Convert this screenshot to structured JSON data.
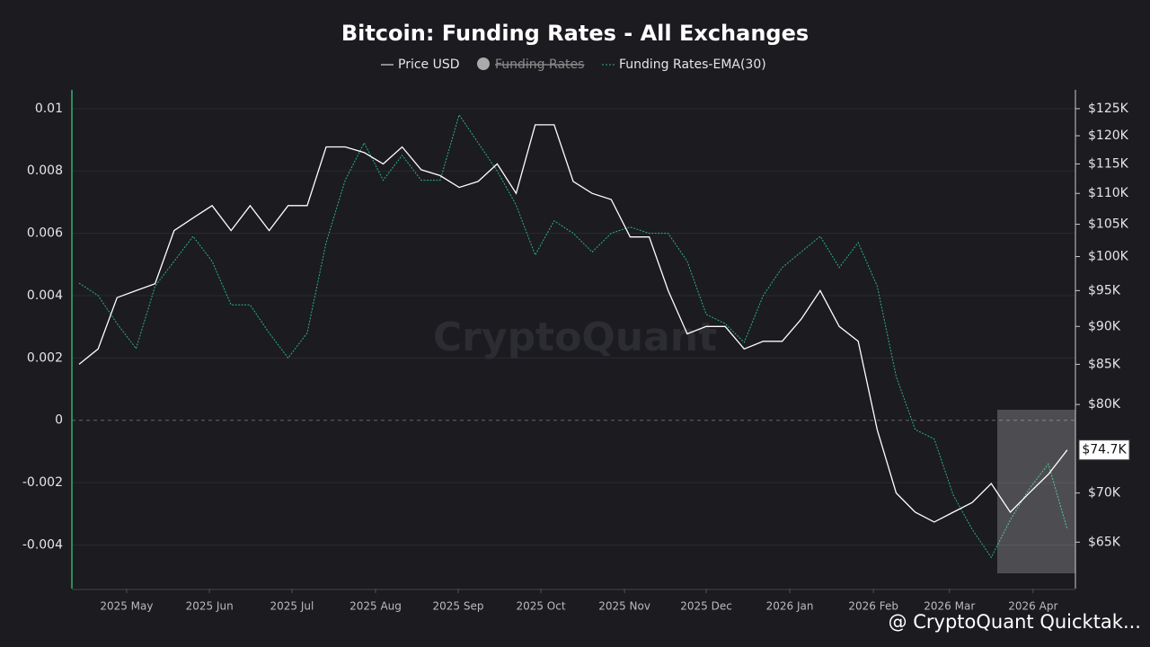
{
  "chart_data": {
    "type": "line",
    "title": "Bitcoin: Funding Rates - All Exchanges",
    "watermark": "CryptoQuant",
    "footer": "@ CryptoQuant Quicktak...",
    "legend_hidden": "Funding Rates",
    "xlim": [
      -0.38,
      52.43
    ],
    "xticks": [
      {
        "value": 2.5,
        "label": "2025 May"
      },
      {
        "value": 6.86,
        "label": "2025 Jun"
      },
      {
        "value": 11.2,
        "label": "2025 Jul"
      },
      {
        "value": 15.6,
        "label": "2025 Aug"
      },
      {
        "value": 19.95,
        "label": "2025 Sep"
      },
      {
        "value": 24.3,
        "label": "2025 Oct"
      },
      {
        "value": 28.7,
        "label": "2025 Nov"
      },
      {
        "value": 33.0,
        "label": "2025 Dec"
      },
      {
        "value": 37.4,
        "label": "2026 Jan"
      },
      {
        "value": 41.8,
        "label": "2026 Feb"
      },
      {
        "value": 45.8,
        "label": "2026 Mar"
      },
      {
        "value": 50.2,
        "label": "2026 Apr"
      }
    ],
    "ylim": [
      -0.0054,
      0.0106
    ],
    "yticks": [
      -0.004,
      -0.002,
      0,
      0.002,
      0.004,
      0.006,
      0.008,
      0.01
    ],
    "y2lim": [
      60600,
      128600
    ],
    "y2scale": "log",
    "y2ticks": [
      {
        "value": 65000,
        "label": "$65K"
      },
      {
        "value": 70000,
        "label": "$70K"
      },
      {
        "value": 80000,
        "label": "$80K"
      },
      {
        "value": 85000,
        "label": "$85K"
      },
      {
        "value": 90000,
        "label": "$90K"
      },
      {
        "value": 95000,
        "label": "$95K"
      },
      {
        "value": 100000,
        "label": "$100K"
      },
      {
        "value": 105000,
        "label": "$105K"
      },
      {
        "value": 110000,
        "label": "$110K"
      },
      {
        "value": 115000,
        "label": "$115K"
      },
      {
        "value": 120000,
        "label": "$120K"
      },
      {
        "value": 125000,
        "label": "$125K"
      }
    ],
    "grid": true,
    "series": [
      {
        "name": "Price USD",
        "color": "#ffffff",
        "axis": "y2",
        "values": [
          85000,
          87000,
          94000,
          95000,
          96000,
          104000,
          106000,
          108000,
          104000,
          108000,
          104000,
          108000,
          108000,
          118000,
          118000,
          117000,
          115000,
          118000,
          114000,
          113000,
          111000,
          112000,
          115000,
          110000,
          122000,
          122000,
          112000,
          110000,
          109000,
          103000,
          103000,
          95000,
          89000,
          90000,
          90000,
          87000,
          88000,
          88000,
          91000,
          95000,
          90000,
          88000,
          77000,
          70000,
          68000,
          67000,
          68000,
          69000,
          71000,
          68000,
          70000,
          72000,
          74700
        ],
        "value_labels": {
          "52": "$74.7K"
        }
      },
      {
        "name": "Funding Rates-EMA(30)",
        "color": "#2bb673",
        "values": [
          0.0044,
          0.004,
          0.0031,
          0.0023,
          0.0043,
          0.0051,
          0.0059,
          0.0051,
          0.0037,
          0.0037,
          0.0028,
          0.002,
          0.0028,
          0.0057,
          0.0077,
          0.0089,
          0.0077,
          0.0085,
          0.0077,
          0.0077,
          0.0098,
          0.0089,
          0.008,
          0.0069,
          0.0053,
          0.0064,
          0.006,
          0.0054,
          0.006,
          0.0062,
          0.006,
          0.006,
          0.0051,
          0.0034,
          0.0031,
          0.0025,
          0.004,
          0.0049,
          0.0054,
          0.0059,
          0.0049,
          0.0057,
          0.0043,
          0.0014,
          -0.0003,
          -0.0006,
          -0.0024,
          -0.0035,
          -0.0044,
          -0.0032,
          -0.0022,
          -0.0014,
          -0.0035
        ]
      }
    ]
  }
}
